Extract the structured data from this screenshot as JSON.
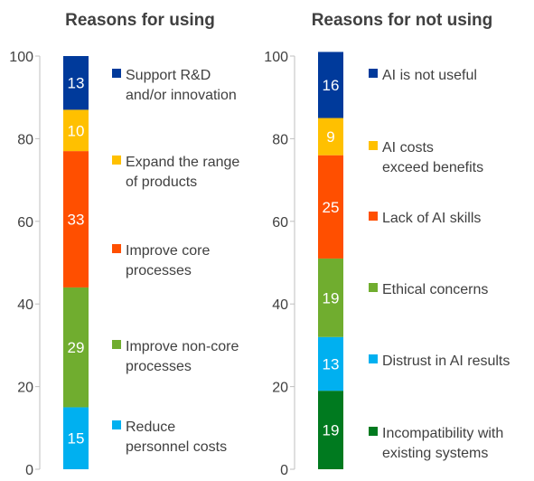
{
  "chart_data": [
    {
      "type": "bar",
      "title": "Reasons for using",
      "ylim": [
        0,
        100
      ],
      "yticks": [
        "0",
        "20",
        "40",
        "60",
        "80",
        "100"
      ],
      "grid": false,
      "legend": "right",
      "series": [
        {
          "name": "Reduce personnel costs",
          "value": 15,
          "color": "#00b0f0"
        },
        {
          "name": "Improve non-core processes",
          "value": 29,
          "color": "#70ad2f"
        },
        {
          "name": "Improve core processes",
          "value": 33,
          "color": "#ff4f00"
        },
        {
          "name": "Expand the range of products",
          "value": 10,
          "color": "#ffc000"
        },
        {
          "name": "Support R&D and/or innovation",
          "value": 13,
          "color": "#003a9b"
        }
      ]
    },
    {
      "type": "bar",
      "title": "Reasons for not using",
      "ylim": [
        0,
        100
      ],
      "yticks": [
        "0",
        "20",
        "40",
        "60",
        "80",
        "100"
      ],
      "grid": false,
      "legend": "right",
      "series": [
        {
          "name": "Incompatibility with existing systems",
          "value": 19,
          "color": "#007a1f"
        },
        {
          "name": "Distrust in AI results",
          "value": 13,
          "color": "#00b0f0"
        },
        {
          "name": "Ethical concerns",
          "value": 19,
          "color": "#70ad2f"
        },
        {
          "name": "Lack of AI skills",
          "value": 25,
          "color": "#ff4f00"
        },
        {
          "name": "AI costs exceed benefits",
          "value": 9,
          "color": "#ffc000"
        },
        {
          "name": "AI is not useful",
          "value": 16,
          "color": "#003a9b"
        }
      ]
    }
  ],
  "legend_lines": [
    [
      [
        "Reduce",
        "personnel costs"
      ],
      [
        "Improve non-core",
        "processes"
      ],
      [
        "Improve core",
        "processes"
      ],
      [
        "Expand the range",
        "of products"
      ],
      [
        "Support R&D",
        "and/or innovation"
      ]
    ],
    [
      [
        "Incompatibility with",
        "existing systems"
      ],
      [
        "Distrust in AI results"
      ],
      [
        "Ethical concerns"
      ],
      [
        "Lack of AI skills"
      ],
      [
        "AI costs",
        "exceed benefits"
      ],
      [
        "AI is not useful"
      ]
    ]
  ]
}
